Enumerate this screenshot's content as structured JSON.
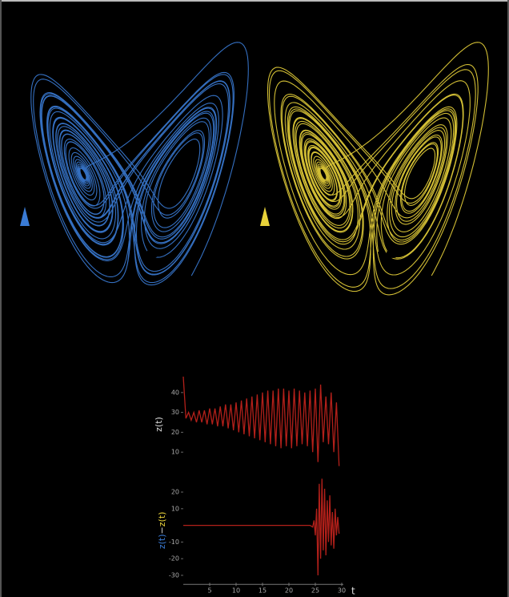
{
  "chart_data": [
    {
      "type": "line",
      "ylabel": "z(t)",
      "color": "#b3201a",
      "xlim": [
        0,
        30
      ],
      "ylim": [
        0,
        48
      ],
      "yticks": [
        10,
        20,
        30,
        40
      ],
      "x": [
        0,
        0.5,
        1,
        1.5,
        2,
        2.5,
        3,
        3.5,
        4,
        4.5,
        5,
        5.5,
        6,
        6.5,
        7,
        7.5,
        8,
        8.5,
        9,
        9.5,
        10,
        10.5,
        11,
        11.5,
        12,
        12.5,
        13,
        13.5,
        14,
        14.5,
        15,
        15.5,
        16,
        16.5,
        17,
        17.5,
        18,
        18.5,
        19,
        19.5,
        20,
        20.5,
        21,
        21.5,
        22,
        22.5,
        23,
        23.5,
        24,
        24.5,
        25,
        25.5,
        26,
        26.5,
        27,
        27.5,
        28,
        28.5,
        29,
        29.5
      ],
      "values": [
        48,
        27,
        30,
        26,
        30,
        25,
        31,
        25,
        31,
        24,
        32,
        24,
        32,
        23,
        33,
        23,
        34,
        22,
        34,
        21,
        35,
        20,
        36,
        19,
        37,
        18,
        38,
        17,
        39,
        16,
        40,
        15,
        41,
        14,
        41,
        13,
        42,
        12,
        42,
        13,
        41,
        12,
        42,
        13,
        41,
        14,
        40,
        13,
        41,
        10,
        42,
        5,
        44,
        15,
        38,
        14,
        40,
        10,
        35,
        3
      ]
    },
    {
      "type": "line",
      "ylabel_parts": [
        "z(t)",
        "−",
        "z(t)"
      ],
      "ylabel_colors": [
        "#3a7bd5",
        "#dddddd",
        "#e8d23a"
      ],
      "xlabel": "t",
      "color": "#b3201a",
      "xlim": [
        0,
        30
      ],
      "ylim": [
        -33,
        27
      ],
      "yticks": [
        -30,
        -20,
        -10,
        10,
        20
      ],
      "xticks": [
        5,
        10,
        15,
        20,
        25,
        30
      ],
      "x": [
        0,
        24,
        24.5,
        24.75,
        25,
        25.25,
        25.5,
        25.75,
        26,
        26.25,
        26.5,
        26.75,
        27,
        27.25,
        27.5,
        27.75,
        28,
        28.25,
        28.5,
        28.75,
        29,
        29.25,
        29.5
      ],
      "values": [
        0,
        0,
        -1,
        3,
        -6,
        10,
        -30,
        25,
        -20,
        28,
        -15,
        22,
        -18,
        15,
        -10,
        18,
        -12,
        8,
        -14,
        10,
        -6,
        5,
        -5
      ]
    }
  ]
}
